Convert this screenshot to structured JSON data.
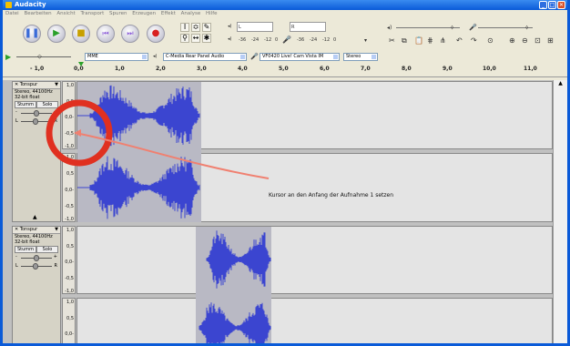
{
  "window": {
    "title": "Audacity",
    "minimize": "_",
    "maximize": "□",
    "close": "✕"
  },
  "menu": [
    "Datei",
    "Bearbeiten",
    "Ansicht",
    "Transport",
    "Spuren",
    "Erzeugen",
    "Effekt",
    "Analyse",
    "Hilfe"
  ],
  "transport": {
    "pause": "pause-icon",
    "play": "play-icon",
    "stop": "stop-icon",
    "skip_start": "skip-start-icon",
    "skip_end": "skip-end-icon",
    "record": "record-icon"
  },
  "meters": {
    "out_l": "L",
    "out_r": "R",
    "scale1": "-36",
    "scale2": "-24",
    "scale3": "-12",
    "scale4": "0",
    "scale5": "-36",
    "scale6": "-24",
    "scale7": "-12",
    "scale8": "0"
  },
  "devices": {
    "host": "MME",
    "output": "C-Media Rear Panel Audio",
    "input": "VF0420 Live! Cam Vista IM",
    "channels": "Stereo"
  },
  "ruler": [
    "- 1,0",
    "0,0",
    "1,0",
    "2,0",
    "3,0",
    "4,0",
    "5,0",
    "6,0",
    "7,0",
    "8,0",
    "9,0",
    "10,0",
    "11,0"
  ],
  "track1": {
    "name": "Tonspur",
    "rate": "Stereo, 44100Hz",
    "format": "32-bit float",
    "mute": "Stumm",
    "solo": "Solo",
    "gain_minus": "-",
    "gain_plus": "+",
    "pan_l": "L",
    "pan_r": "R"
  },
  "track2": {
    "name": "Tonspur",
    "rate": "Stereo, 44100Hz",
    "format": "32-bit float",
    "mute": "Stumm",
    "solo": "Solo",
    "gain_minus": "-",
    "gain_plus": "+",
    "pan_l": "L",
    "pan_r": "R"
  },
  "vscale": {
    "p1": "1,0",
    "p05": "0,5",
    "z": "0,0-",
    "m05": "-0,5",
    "m1": "-1,0"
  },
  "annotation": {
    "text": "Kursor an den Anfang der Aufnahme 1 setzen",
    "color": "#e03020"
  }
}
